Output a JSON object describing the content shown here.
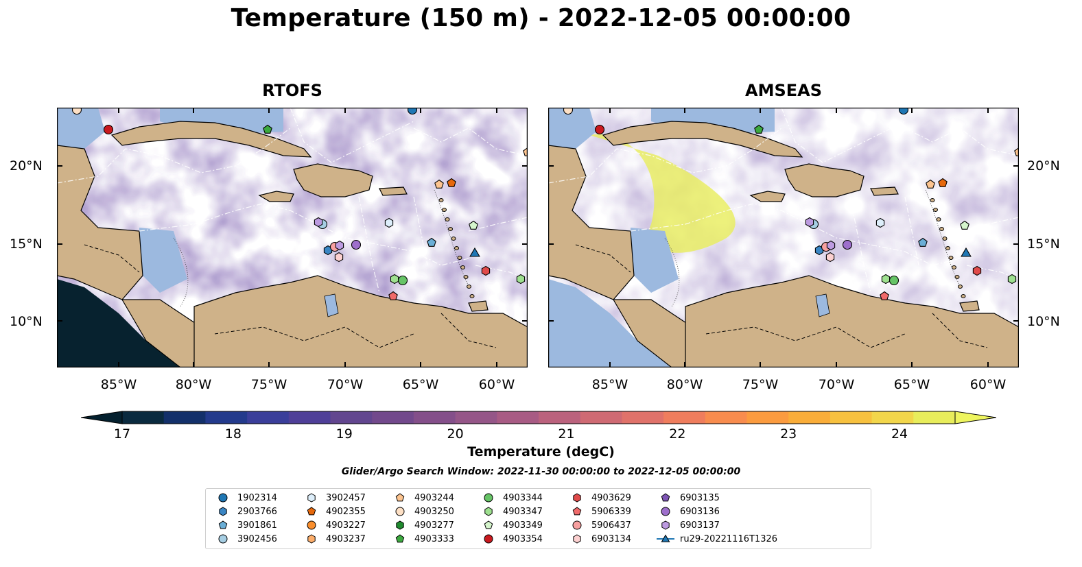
{
  "title": "Temperature (150 m) - 2022-12-05 00:00:00",
  "panels": [
    {
      "title": "RTOFS"
    },
    {
      "title": "AMSEAS"
    }
  ],
  "lat_ticks": [
    "20°N",
    "15°N",
    "10°N"
  ],
  "lon_ticks": [
    "85°W",
    "80°W",
    "75°W",
    "70°W",
    "65°W",
    "60°W"
  ],
  "colorbar": {
    "label": "Temperature (degC)",
    "ticks": [
      "17",
      "18",
      "19",
      "20",
      "21",
      "22",
      "23",
      "24"
    ],
    "min": 17,
    "max": 24.5,
    "colors": [
      "#0a2a3f",
      "#13306a",
      "#233a8c",
      "#3a3e9a",
      "#4f3f98",
      "#62468f",
      "#72498c",
      "#844f8a",
      "#955688",
      "#a85b84",
      "#bb627d",
      "#cf6a73",
      "#e0726a",
      "#ef7d5d",
      "#f88c4e",
      "#fb9b3f",
      "#faad39",
      "#f7c13f",
      "#f2d64b",
      "#e8ed5b"
    ]
  },
  "search_window": "Glider/Argo Search Window: 2022-11-30 00:00:00 to 2022-12-05 00:00:00",
  "legend": [
    {
      "label": "1902314",
      "marker": "circle",
      "color": "#1f77b4"
    },
    {
      "label": "2903766",
      "marker": "hexagon",
      "color": "#3a86c4"
    },
    {
      "label": "3901861",
      "marker": "pentagon",
      "color": "#6aaed6"
    },
    {
      "label": "3902456",
      "marker": "circle",
      "color": "#a6cee3"
    },
    {
      "label": "3902457",
      "marker": "hexagon",
      "color": "#ddeefa"
    },
    {
      "label": "4902355",
      "marker": "pentagon",
      "color": "#e6680c"
    },
    {
      "label": "4903227",
      "marker": "circle",
      "color": "#f98e2c"
    },
    {
      "label": "4903237",
      "marker": "hexagon",
      "color": "#fdae6b"
    },
    {
      "label": "4903244",
      "marker": "pentagon",
      "color": "#fdc48f"
    },
    {
      "label": "4903250",
      "marker": "circle",
      "color": "#fde0c5"
    },
    {
      "label": "4903277",
      "marker": "hexagon",
      "color": "#1f8a2e"
    },
    {
      "label": "4903333",
      "marker": "pentagon",
      "color": "#3ca93f"
    },
    {
      "label": "4903344",
      "marker": "circle",
      "color": "#66c466"
    },
    {
      "label": "4903347",
      "marker": "hexagon",
      "color": "#9ee08f"
    },
    {
      "label": "4903349",
      "marker": "pentagon",
      "color": "#d5f5cc"
    },
    {
      "label": "4903354",
      "marker": "circle",
      "color": "#c9191e"
    },
    {
      "label": "4903629",
      "marker": "hexagon",
      "color": "#e04a4a"
    },
    {
      "label": "5906339",
      "marker": "pentagon",
      "color": "#f06a6a"
    },
    {
      "label": "5906437",
      "marker": "circle",
      "color": "#f7a0a0"
    },
    {
      "label": "6903134",
      "marker": "hexagon",
      "color": "#fcd0d0"
    },
    {
      "label": "6903135",
      "marker": "pentagon",
      "color": "#7e56b5"
    },
    {
      "label": "6903136",
      "marker": "circle",
      "color": "#9e6fcc"
    },
    {
      "label": "6903137",
      "marker": "hexagon",
      "color": "#bc9ae0"
    },
    {
      "label": "ru29-20221116T1326",
      "marker": "triangle-line",
      "color": "#1f77b4"
    }
  ],
  "colors": {
    "land": "#cfb289",
    "shallow_water": "#9cb9df",
    "contour": "#ffffff"
  }
}
